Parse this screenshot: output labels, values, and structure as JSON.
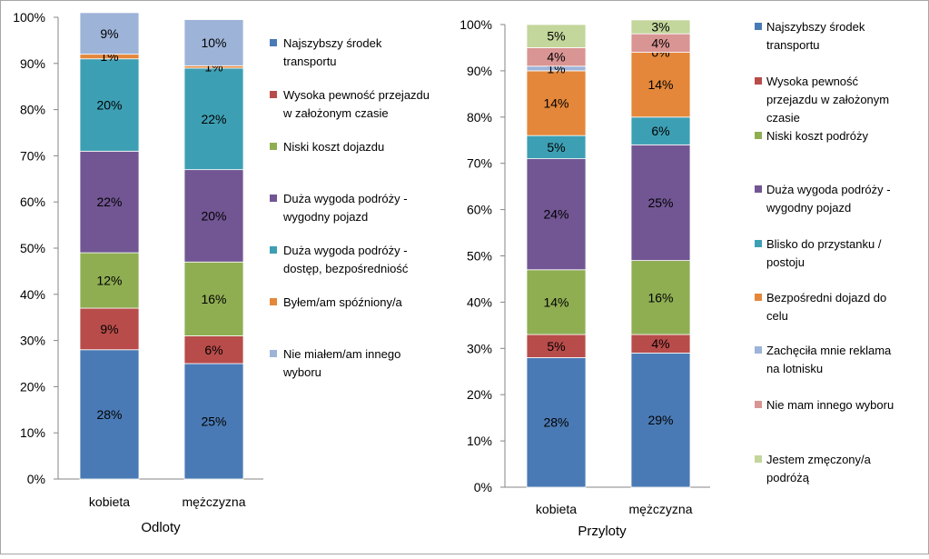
{
  "chart_data": [
    {
      "type": "bar",
      "stacked": true,
      "percent": true,
      "title": "",
      "xlabel": "Odloty",
      "ylabel": "",
      "ylim": [
        0,
        100
      ],
      "yticks": [
        "0%",
        "10%",
        "20%",
        "30%",
        "40%",
        "50%",
        "60%",
        "70%",
        "80%",
        "90%",
        "100%"
      ],
      "categories": [
        "kobieta",
        "mężczyzna"
      ],
      "legend": "right",
      "series": [
        {
          "name": "Najszybszy środek transportu",
          "color": "#4a7ab5",
          "values": [
            28,
            25
          ],
          "labels": [
            "28%",
            "25%"
          ]
        },
        {
          "name": "Wysoka pewność przejazdu w założonym czasie",
          "color": "#b84c4a",
          "values": [
            9,
            6
          ],
          "labels": [
            "9%",
            "6%"
          ]
        },
        {
          "name": "Niski koszt dojazdu",
          "color": "#8fae52",
          "values": [
            12,
            16
          ],
          "labels": [
            "12%",
            "16%"
          ]
        },
        {
          "name": "Duża wygoda podróży - wygodny pojazd",
          "color": "#725693",
          "values": [
            22,
            20
          ],
          "labels": [
            "22%",
            "20%"
          ]
        },
        {
          "name": "Duża wygoda podróży - dostęp, bezpośredniość",
          "color": "#3d9fb3",
          "values": [
            20,
            22
          ],
          "labels": [
            "20%",
            "22%"
          ]
        },
        {
          "name": "Byłem/am spóźniony/a",
          "color": "#e4873a",
          "values": [
            1,
            0.5
          ],
          "labels": [
            "1%",
            "1%"
          ]
        },
        {
          "name": "Nie miałem/am innego wyboru",
          "color": "#9db3d8",
          "values": [
            9,
            10
          ],
          "labels": [
            "9%",
            "10%"
          ]
        }
      ]
    },
    {
      "type": "bar",
      "stacked": true,
      "percent": true,
      "title": "",
      "xlabel": "Przyloty",
      "ylabel": "",
      "ylim": [
        0,
        100
      ],
      "yticks": [
        "0%",
        "10%",
        "20%",
        "30%",
        "40%",
        "50%",
        "60%",
        "70%",
        "80%",
        "90%",
        "100%"
      ],
      "categories": [
        "kobieta",
        "mężczyzna"
      ],
      "legend": "right",
      "series": [
        {
          "name": "Najszybszy środek transportu",
          "color": "#4a7ab5",
          "values": [
            28,
            29
          ],
          "labels": [
            "28%",
            "29%"
          ]
        },
        {
          "name": "Wysoka pewność przejazdu w założonym czasie",
          "color": "#b84c4a",
          "values": [
            5,
            4
          ],
          "labels": [
            "5%",
            "4%"
          ]
        },
        {
          "name": "Niski koszt podróży",
          "color": "#8fae52",
          "values": [
            14,
            16
          ],
          "labels": [
            "14%",
            "16%"
          ]
        },
        {
          "name": "Duża wygoda podróży - wygodny pojazd",
          "color": "#725693",
          "values": [
            24,
            25
          ],
          "labels": [
            "24%",
            "25%"
          ]
        },
        {
          "name": "Blisko do przystanku / postoju",
          "color": "#3d9fb3",
          "values": [
            5,
            6
          ],
          "labels": [
            "5%",
            "6%"
          ]
        },
        {
          "name": "Bezpośredni dojazd do celu",
          "color": "#e4873a",
          "values": [
            14,
            14
          ],
          "labels": [
            "14%",
            "14%"
          ]
        },
        {
          "name": "Zachęciła mnie reklama na lotnisku",
          "color": "#9db3d8",
          "values": [
            1,
            0
          ],
          "labels": [
            "1%",
            "0%"
          ]
        },
        {
          "name": "Nie mam innego wyboru",
          "color": "#d99593",
          "values": [
            4,
            4
          ],
          "labels": [
            "4%",
            "4%"
          ]
        },
        {
          "name": "Jestem zmęczony/a podróżą",
          "color": "#c3d69b",
          "values": [
            5,
            3
          ],
          "labels": [
            "5%",
            "3%"
          ]
        }
      ]
    }
  ]
}
